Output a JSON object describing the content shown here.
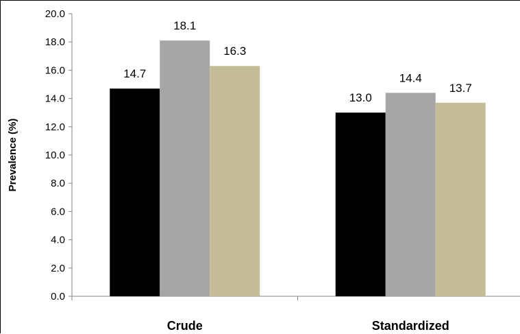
{
  "chart_data": {
    "type": "bar",
    "title": "",
    "xlabel": "",
    "ylabel": "Prevalence (%)",
    "ylim": [
      0,
      20
    ],
    "ytick_step": 2,
    "ytick_labels": [
      "0.0",
      "2.0",
      "4.0",
      "6.0",
      "8.0",
      "10.0",
      "12.0",
      "14.0",
      "16.0",
      "18.0",
      "20.0"
    ],
    "grid": false,
    "legend": "none",
    "categories": [
      "Crude",
      "Standardized"
    ],
    "series": [
      {
        "color": "#000000",
        "values": [
          14.7,
          13.0
        ],
        "labels": [
          "14.7",
          "13.0"
        ]
      },
      {
        "color": "#a6a6a6",
        "values": [
          18.1,
          14.4
        ],
        "labels": [
          "18.1",
          "14.4"
        ]
      },
      {
        "color": "#c4bd97",
        "values": [
          16.3,
          13.7
        ],
        "labels": [
          "16.3",
          "13.7"
        ]
      }
    ]
  }
}
